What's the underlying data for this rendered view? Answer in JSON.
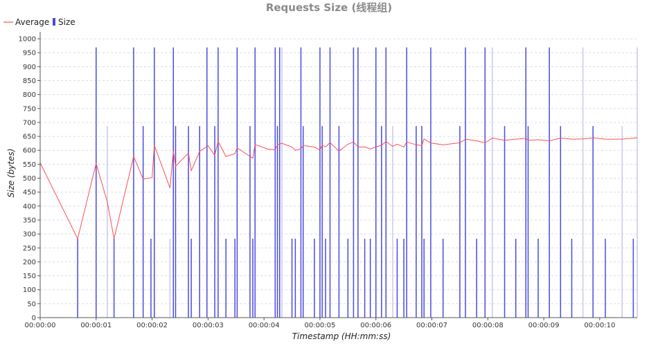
{
  "chart_data": {
    "type": "bar",
    "title": "Requests Size (线程组)",
    "xlabel": "Timestamp (HH:mm:ss)",
    "ylabel": "Size (bytes)",
    "legend_position": "top-left",
    "grid": true,
    "colors": {
      "average": "#ff4d4d",
      "size": "#4a4ae0",
      "size_faint": "#c8c8f0",
      "grid": "#d6dce8",
      "axis": "#555555"
    },
    "x_range_seconds": [
      0,
      10.67
    ],
    "ylim": [
      0,
      1025
    ],
    "y_ticks": [
      0,
      50,
      100,
      150,
      200,
      250,
      300,
      350,
      400,
      450,
      500,
      550,
      600,
      650,
      700,
      750,
      800,
      850,
      900,
      950,
      1000
    ],
    "x_ticks": [
      {
        "t": 0,
        "label": "00:00:00"
      },
      {
        "t": 1,
        "label": "00:00:01"
      },
      {
        "t": 2,
        "label": "00:00:02"
      },
      {
        "t": 3,
        "label": "00:00:03"
      },
      {
        "t": 4,
        "label": "00:00:04"
      },
      {
        "t": 5,
        "label": "00:00:05"
      },
      {
        "t": 6,
        "label": "00:00:06"
      },
      {
        "t": 7,
        "label": "00:00:07"
      },
      {
        "t": 8,
        "label": "00:00:08"
      },
      {
        "t": 9,
        "label": "00:00:09"
      },
      {
        "t": 10,
        "label": "00:00:10"
      }
    ],
    "series": [
      {
        "name": "Average",
        "kind": "line",
        "points": [
          [
            0,
            555
          ],
          [
            0.67,
            283
          ],
          [
            1.0,
            553
          ],
          [
            1.2,
            415
          ],
          [
            1.32,
            283
          ],
          [
            1.67,
            578
          ],
          [
            1.84,
            497
          ],
          [
            2.0,
            502
          ],
          [
            2.04,
            618
          ],
          [
            2.32,
            465
          ],
          [
            2.38,
            598
          ],
          [
            2.42,
            543
          ],
          [
            2.65,
            590
          ],
          [
            2.7,
            527
          ],
          [
            2.85,
            596
          ],
          [
            3.0,
            617
          ],
          [
            3.12,
            582
          ],
          [
            3.18,
            632
          ],
          [
            3.32,
            578
          ],
          [
            3.48,
            588
          ],
          [
            3.52,
            609
          ],
          [
            3.75,
            578
          ],
          [
            3.8,
            572
          ],
          [
            3.84,
            621
          ],
          [
            4.06,
            605
          ],
          [
            4.2,
            602
          ],
          [
            4.24,
            620
          ],
          [
            4.32,
            625
          ],
          [
            4.5,
            612
          ],
          [
            4.56,
            600
          ],
          [
            4.66,
            605
          ],
          [
            4.7,
            617
          ],
          [
            4.9,
            612
          ],
          [
            5.0,
            601
          ],
          [
            5.04,
            619
          ],
          [
            5.1,
            612
          ],
          [
            5.18,
            628
          ],
          [
            5.34,
            597
          ],
          [
            5.5,
            622
          ],
          [
            5.6,
            630
          ],
          [
            5.68,
            612
          ],
          [
            5.8,
            612
          ],
          [
            5.9,
            605
          ],
          [
            6.0,
            612
          ],
          [
            6.1,
            618
          ],
          [
            6.18,
            632
          ],
          [
            6.3,
            614
          ],
          [
            6.38,
            622
          ],
          [
            6.5,
            612
          ],
          [
            6.55,
            630
          ],
          [
            6.72,
            620
          ],
          [
            6.82,
            617
          ],
          [
            6.86,
            641
          ],
          [
            6.98,
            626
          ],
          [
            7.2,
            620
          ],
          [
            7.5,
            627
          ],
          [
            7.6,
            640
          ],
          [
            7.8,
            634
          ],
          [
            7.95,
            627
          ],
          [
            8.08,
            644
          ],
          [
            8.3,
            636
          ],
          [
            8.5,
            640
          ],
          [
            8.68,
            643
          ],
          [
            8.72,
            636
          ],
          [
            8.9,
            638
          ],
          [
            9.1,
            634
          ],
          [
            9.3,
            644
          ],
          [
            9.5,
            640
          ],
          [
            9.7,
            641
          ],
          [
            9.88,
            645
          ],
          [
            10.1,
            640
          ],
          [
            10.4,
            640
          ],
          [
            10.67,
            645
          ]
        ]
      },
      {
        "name": "Size",
        "kind": "bar",
        "bars": [
          [
            0.67,
            283
          ],
          [
            1.0,
            969
          ],
          [
            1.2,
            687,
            "faint"
          ],
          [
            1.32,
            283
          ],
          [
            1.67,
            969
          ],
          [
            1.84,
            687
          ],
          [
            1.98,
            283
          ],
          [
            2.04,
            969
          ],
          [
            2.32,
            283,
            "faint"
          ],
          [
            2.38,
            969
          ],
          [
            2.42,
            687
          ],
          [
            2.65,
            687
          ],
          [
            2.7,
            283
          ],
          [
            2.85,
            687
          ],
          [
            2.98,
            969
          ],
          [
            3.12,
            687
          ],
          [
            3.18,
            969
          ],
          [
            3.32,
            283
          ],
          [
            3.48,
            283
          ],
          [
            3.52,
            969
          ],
          [
            3.75,
            687
          ],
          [
            3.8,
            283
          ],
          [
            3.84,
            969
          ],
          [
            4.2,
            969
          ],
          [
            4.24,
            687
          ],
          [
            4.28,
            969
          ],
          [
            4.32,
            969,
            "faint"
          ],
          [
            4.5,
            283
          ],
          [
            4.56,
            283
          ],
          [
            4.66,
            969
          ],
          [
            4.7,
            687
          ],
          [
            4.9,
            283
          ],
          [
            5.0,
            969
          ],
          [
            5.04,
            687
          ],
          [
            5.1,
            283
          ],
          [
            5.18,
            969
          ],
          [
            5.34,
            687
          ],
          [
            5.5,
            283
          ],
          [
            5.6,
            969
          ],
          [
            5.68,
            969
          ],
          [
            5.8,
            283
          ],
          [
            5.9,
            283
          ],
          [
            6.0,
            969
          ],
          [
            6.1,
            687
          ],
          [
            6.18,
            969
          ],
          [
            6.3,
            687,
            "faint"
          ],
          [
            6.38,
            283
          ],
          [
            6.5,
            283
          ],
          [
            6.55,
            969
          ],
          [
            6.72,
            687
          ],
          [
            6.82,
            687
          ],
          [
            6.86,
            283
          ],
          [
            6.98,
            969
          ],
          [
            7.2,
            283
          ],
          [
            7.5,
            687
          ],
          [
            7.6,
            969
          ],
          [
            7.8,
            283
          ],
          [
            7.95,
            969
          ],
          [
            8.08,
            969,
            "faint"
          ],
          [
            8.3,
            687
          ],
          [
            8.5,
            283
          ],
          [
            8.68,
            969
          ],
          [
            8.72,
            687
          ],
          [
            8.9,
            283
          ],
          [
            9.1,
            969
          ],
          [
            9.3,
            687
          ],
          [
            9.5,
            283
          ],
          [
            9.7,
            969,
            "faint"
          ],
          [
            9.88,
            687
          ],
          [
            10.1,
            283
          ],
          [
            10.4,
            687,
            "faint"
          ],
          [
            10.6,
            283
          ],
          [
            10.67,
            969,
            "faint"
          ]
        ]
      }
    ]
  }
}
